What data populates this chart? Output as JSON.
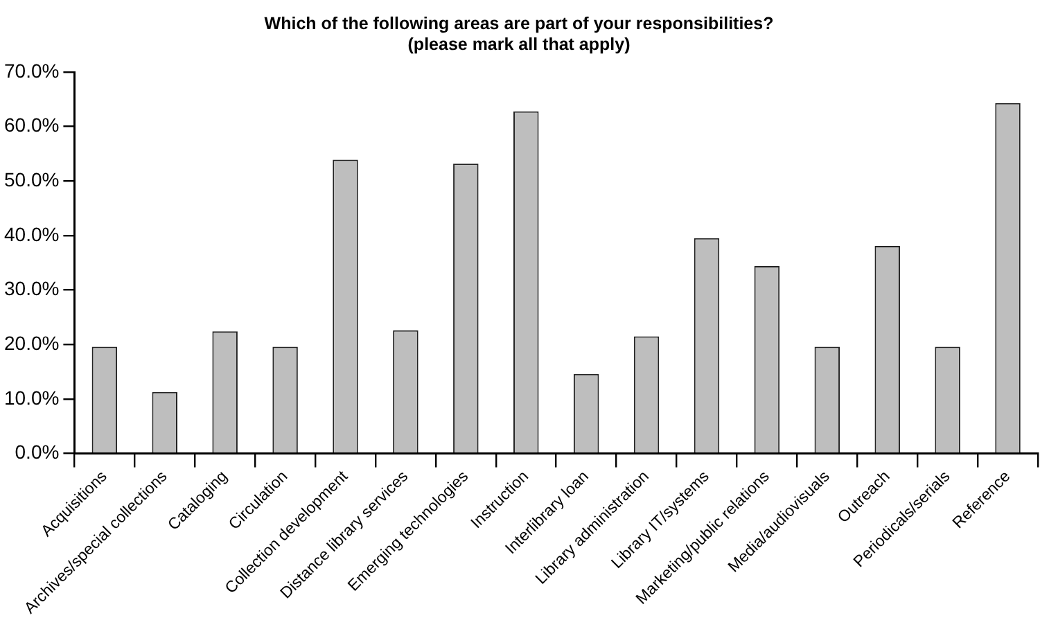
{
  "chart_data": {
    "type": "bar",
    "title": "Which of the following areas are part of your responsibilities?\n(please mark all that apply)",
    "categories": [
      "Acquisitions",
      "Archives/special collections",
      "Cataloging",
      "Circulation",
      "Collection development",
      "Distance library services",
      "Emerging technologies",
      "Instruction",
      "Interlibrary loan",
      "Library administration",
      "Library IT/systems",
      "Marketing/public relations",
      "Media/audiovisuals",
      "Outreach",
      "Periodicals/serials",
      "Reference"
    ],
    "values": [
      19.6,
      11.3,
      22.4,
      19.6,
      53.9,
      22.6,
      53.2,
      62.8,
      14.6,
      21.5,
      39.5,
      34.4,
      19.6,
      38.1,
      19.6,
      64.3
    ],
    "color": "#bebebe",
    "ylim": [
      0,
      70
    ],
    "yticks": [
      {
        "value": 0,
        "label": "0.0%"
      },
      {
        "value": 10,
        "label": "10.0%"
      },
      {
        "value": 20,
        "label": "20.0%"
      },
      {
        "value": 30,
        "label": "30.0%"
      },
      {
        "value": 40,
        "label": "40.0%"
      },
      {
        "value": 50,
        "label": "50.0%"
      },
      {
        "value": 60,
        "label": "60.0%"
      },
      {
        "value": 70,
        "label": "70.0%"
      }
    ],
    "grid": false,
    "legend": false
  }
}
